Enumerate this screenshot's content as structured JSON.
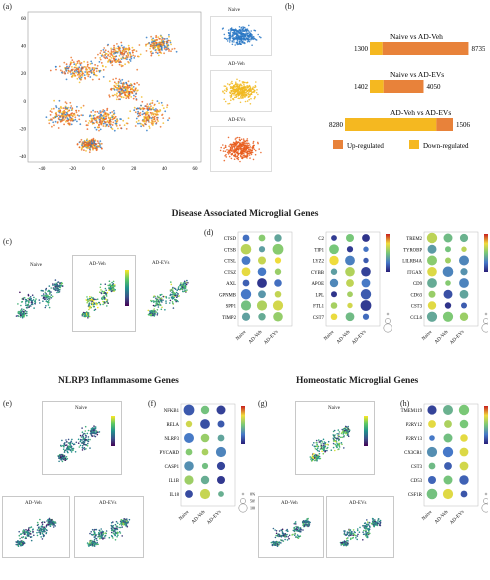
{
  "panels": {
    "a": {
      "letter": "(a)",
      "y_ticks": [
        "60",
        "40",
        "20",
        "0",
        "-20",
        "-40"
      ],
      "x_ticks": [
        "-40",
        "-20",
        "0",
        "20",
        "40",
        "60"
      ],
      "insets": [
        "Naive",
        "AD-Veh",
        "AD-EVs"
      ]
    },
    "b": {
      "letter": "(b)",
      "legend_up": "Up-regulated",
      "legend_down": "Down-regulated",
      "colors": {
        "up": "#e8823a",
        "down": "#f5b820"
      }
    },
    "c": {
      "letter": "(c)",
      "labels": [
        "Naive",
        "AD-Veh",
        "AD-EVs"
      ]
    },
    "d": {
      "letter": "(d)",
      "genes1": [
        "CTSD",
        "CTSB",
        "CTSL",
        "CTSZ",
        "AXL",
        "GPNMB",
        "SPP1",
        "TIMP2"
      ],
      "genes2": [
        "C2",
        "TIP1",
        "LYZ2",
        "CYBB",
        "APOE",
        "LPL",
        "FTL1",
        "CST7"
      ],
      "genes3": [
        "TREM2",
        "TYROBP",
        "LILRB4A",
        "ITGAX",
        "CD9",
        "CD63",
        "CST3",
        "CCL6"
      ],
      "size_legend": [
        "0%",
        "50%",
        "100%"
      ]
    },
    "e": {
      "letter": "(e)",
      "labels": [
        "Naive",
        "AD-Veh",
        "AD-EVs"
      ]
    },
    "f": {
      "letter": "(f)",
      "genes": [
        "NFKB1",
        "RELA",
        "NLRP3",
        "PYCARD",
        "CASP1",
        "IL1B",
        "IL18"
      ],
      "size_legend": [
        "0%",
        "50%",
        "100%"
      ]
    },
    "g": {
      "letter": "(g)",
      "labels": [
        "Naive",
        "AD-Veh",
        "AD-EVs"
      ]
    },
    "h": {
      "letter": "(h)",
      "genes": [
        "TMEM119",
        "P2RY12",
        "P2RY13",
        "CX3CR1",
        "CST3",
        "CD53",
        "CSF1R"
      ],
      "size_legend": [
        "0%",
        "50%",
        "100%"
      ]
    }
  },
  "section_titles": {
    "dam": "Disease Associated Microglial Genes",
    "nlrp3": "NLRP3 Inflammasome Genes",
    "homeostatic": "Homeostatic Microglial Genes"
  },
  "groups": [
    "Naive",
    "AD-Veh",
    "AD-EVs"
  ],
  "chart_data": {
    "type": "bar",
    "orientation": "horizontal",
    "stacked": true,
    "categories": [
      "Naive vs AD-Veh",
      "Naive vs AD-EVs",
      "AD-Veh vs AD-EVs"
    ],
    "series": [
      {
        "name": "Down-regulated",
        "values": [
          1300,
          1402,
          8280
        ]
      },
      {
        "name": "Up-regulated",
        "values": [
          8735,
          4050,
          1506
        ]
      }
    ]
  }
}
